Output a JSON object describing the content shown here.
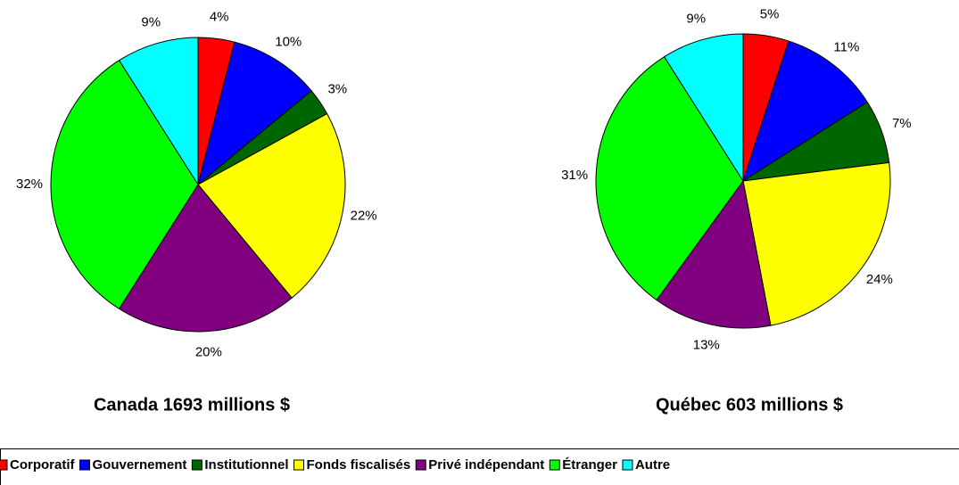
{
  "chart_data": [
    {
      "type": "pie",
      "title": "Canada 1693 millions $",
      "categories": [
        "Corporatif",
        "Gouvernement",
        "Institutionnel",
        "Fonds fiscalisés",
        "Privé indépendant",
        "Étranger",
        "Autre"
      ],
      "values": [
        4,
        10,
        3,
        22,
        20,
        32,
        9
      ],
      "value_labels": [
        "4%",
        "10%",
        "3%",
        "22%",
        "20%",
        "32%",
        "9%"
      ],
      "colors": [
        "#ff0000",
        "#0000ff",
        "#006600",
        "#ffff00",
        "#800080",
        "#00ff00",
        "#00ffff"
      ]
    },
    {
      "type": "pie",
      "title": "Québec 603 millions $",
      "categories": [
        "Corporatif",
        "Gouvernement",
        "Institutionnel",
        "Fonds fiscalisés",
        "Privé indépendant",
        "Étranger",
        "Autre"
      ],
      "values": [
        5,
        11,
        7,
        24,
        13,
        31,
        9
      ],
      "value_labels": [
        "5%",
        "11%",
        "7%",
        "24%",
        "13%",
        "31%",
        "9%"
      ],
      "colors": [
        "#ff0000",
        "#0000ff",
        "#006600",
        "#ffff00",
        "#800080",
        "#00ff00",
        "#00ffff"
      ]
    }
  ]
}
